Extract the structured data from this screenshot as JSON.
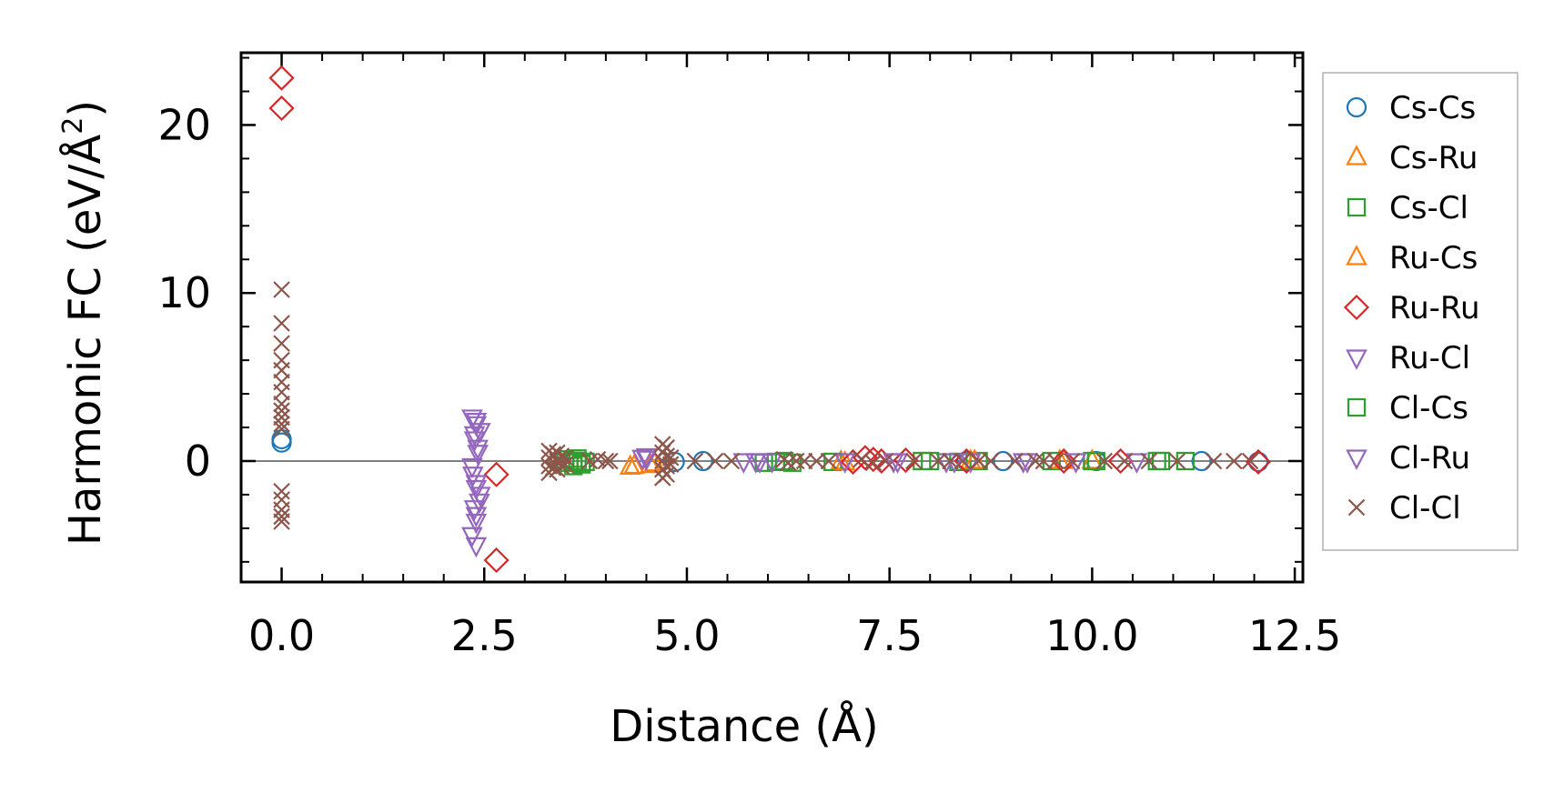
{
  "chart_data": {
    "type": "scatter",
    "title": "",
    "xlabel": "Distance (Å)",
    "ylabel_prefix": "Harmonic FC (eV/Å",
    "ylabel_sup": "2",
    "ylabel_suffix": ")",
    "xlim": [
      -0.5,
      12.6
    ],
    "ylim": [
      -7.2,
      24.3
    ],
    "xticks": [
      0.0,
      2.5,
      5.0,
      7.5,
      10.0,
      12.5
    ],
    "xtick_labels": [
      "0.0",
      "2.5",
      "5.0",
      "7.5",
      "10.0",
      "12.5"
    ],
    "yticks": [
      0,
      10,
      20
    ],
    "ytick_labels": [
      "0",
      "10",
      "20"
    ],
    "x_minor_step": 0.5,
    "y_minor_step": 2,
    "hline_y": 0,
    "legend_position": "right, outside plot",
    "grid": false,
    "series": [
      {
        "name": "Cs-Cs",
        "marker": "circle",
        "color": "#1f77b4",
        "points": [
          [
            0.0,
            1.3
          ],
          [
            0.0,
            1.1
          ],
          [
            4.85,
            -0.05
          ],
          [
            5.2,
            0.0
          ],
          [
            8.45,
            0.0
          ],
          [
            8.9,
            0.0
          ],
          [
            10.05,
            0.0
          ],
          [
            11.35,
            0.0
          ],
          [
            12.05,
            -0.05
          ]
        ]
      },
      {
        "name": "Cs-Ru",
        "marker": "triangle-up",
        "color": "#ff7f0e",
        "points": [
          [
            4.35,
            -0.3
          ],
          [
            4.55,
            -0.25
          ],
          [
            6.9,
            -0.05
          ],
          [
            8.5,
            0.0
          ],
          [
            9.6,
            0.0
          ],
          [
            10.0,
            0.0
          ]
        ]
      },
      {
        "name": "Cs-Cl",
        "marker": "square",
        "color": "#2ca02c",
        "points": [
          [
            3.55,
            -0.1
          ],
          [
            3.6,
            -0.3
          ],
          [
            3.65,
            0.15
          ],
          [
            3.7,
            -0.2
          ],
          [
            3.6,
            0.0
          ],
          [
            3.75,
            -0.05
          ],
          [
            5.95,
            -0.1
          ],
          [
            6.1,
            -0.05
          ],
          [
            6.3,
            -0.1
          ],
          [
            6.8,
            -0.05
          ],
          [
            7.9,
            0.0
          ],
          [
            8.35,
            -0.05
          ],
          [
            8.6,
            0.0
          ],
          [
            9.5,
            0.0
          ],
          [
            10.0,
            0.0
          ],
          [
            10.8,
            0.0
          ],
          [
            11.15,
            0.0
          ]
        ]
      },
      {
        "name": "Ru-Cs",
        "marker": "triangle-up",
        "color": "#ff7f0e",
        "points": [
          [
            4.3,
            -0.35
          ],
          [
            4.6,
            -0.15
          ],
          [
            6.95,
            -0.1
          ],
          [
            8.55,
            0.0
          ],
          [
            9.65,
            0.0
          ]
        ]
      },
      {
        "name": "Ru-Ru",
        "marker": "diamond",
        "color": "#d62728",
        "points": [
          [
            0.0,
            22.8
          ],
          [
            0.0,
            21.0
          ],
          [
            2.65,
            -0.8
          ],
          [
            2.65,
            -5.9
          ],
          [
            7.05,
            -0.05
          ],
          [
            7.2,
            0.2
          ],
          [
            7.3,
            0.1
          ],
          [
            7.4,
            0.0
          ],
          [
            7.7,
            0.05
          ],
          [
            8.45,
            0.0
          ],
          [
            9.65,
            0.0
          ],
          [
            10.35,
            0.0
          ],
          [
            12.05,
            -0.05
          ]
        ]
      },
      {
        "name": "Ru-Cl",
        "marker": "triangle-down",
        "color": "#9467bd",
        "points": [
          [
            2.35,
            2.6
          ],
          [
            2.4,
            2.2
          ],
          [
            2.45,
            1.8
          ],
          [
            2.38,
            1.3
          ],
          [
            2.42,
            0.8
          ],
          [
            2.35,
            -0.3
          ],
          [
            2.4,
            -1.3
          ],
          [
            2.45,
            -2.0
          ],
          [
            2.38,
            -2.8
          ],
          [
            2.4,
            -3.6
          ],
          [
            2.35,
            -4.4
          ],
          [
            2.4,
            -5.0
          ],
          [
            4.45,
            0.2
          ],
          [
            4.5,
            0.3
          ],
          [
            5.7,
            0.0
          ],
          [
            5.9,
            0.0
          ],
          [
            6.05,
            0.0
          ],
          [
            6.95,
            0.0
          ],
          [
            7.6,
            0.0
          ],
          [
            8.2,
            0.0
          ],
          [
            8.5,
            0.0
          ],
          [
            9.15,
            0.0
          ],
          [
            9.8,
            0.0
          ],
          [
            10.55,
            0.0
          ]
        ]
      },
      {
        "name": "Cl-Cs",
        "marker": "square",
        "color": "#2ca02c",
        "points": [
          [
            3.5,
            0.1
          ],
          [
            3.65,
            0.0
          ],
          [
            3.7,
            -0.1
          ],
          [
            6.2,
            0.0
          ],
          [
            8.0,
            0.0
          ],
          [
            10.05,
            0.0
          ],
          [
            10.85,
            0.0
          ]
        ]
      },
      {
        "name": "Cl-Ru",
        "marker": "triangle-down",
        "color": "#9467bd",
        "points": [
          [
            2.4,
            2.4
          ],
          [
            2.38,
            1.6
          ],
          [
            2.42,
            0.5
          ],
          [
            2.36,
            -0.8
          ],
          [
            2.4,
            -1.6
          ],
          [
            2.44,
            -2.4
          ],
          [
            2.4,
            -3.2
          ],
          [
            4.5,
            0.15
          ],
          [
            5.85,
            0.0
          ],
          [
            7.55,
            0.0
          ],
          [
            8.3,
            0.0
          ],
          [
            9.2,
            0.0
          ]
        ]
      },
      {
        "name": "Cl-Cl",
        "marker": "x",
        "color": "#8c564b",
        "points": [
          [
            0.0,
            10.2
          ],
          [
            0.0,
            8.2
          ],
          [
            0.0,
            7.0
          ],
          [
            0.0,
            6.0
          ],
          [
            0.0,
            5.4
          ],
          [
            0.0,
            4.7
          ],
          [
            0.0,
            4.1
          ],
          [
            0.0,
            3.4
          ],
          [
            0.0,
            3.0
          ],
          [
            0.0,
            2.6
          ],
          [
            0.0,
            2.2
          ],
          [
            0.0,
            1.9
          ],
          [
            0.0,
            -1.8
          ],
          [
            0.0,
            -2.3
          ],
          [
            0.0,
            -2.9
          ],
          [
            0.0,
            -3.3
          ],
          [
            0.0,
            -3.6
          ],
          [
            3.3,
            0.6
          ],
          [
            3.3,
            0.2
          ],
          [
            3.3,
            -0.3
          ],
          [
            3.3,
            -0.7
          ],
          [
            3.35,
            0.4
          ],
          [
            3.35,
            -0.4
          ],
          [
            3.4,
            0.5
          ],
          [
            3.4,
            0.0
          ],
          [
            3.4,
            -0.5
          ],
          [
            3.45,
            0.3
          ],
          [
            3.45,
            -0.3
          ],
          [
            3.5,
            0.2
          ],
          [
            3.5,
            -0.2
          ],
          [
            3.8,
            0.0
          ],
          [
            3.9,
            0.1
          ],
          [
            4.0,
            0.0
          ],
          [
            4.05,
            0.0
          ],
          [
            4.7,
            1.0
          ],
          [
            4.7,
            0.5
          ],
          [
            4.7,
            0.0
          ],
          [
            4.7,
            -0.5
          ],
          [
            4.7,
            -1.0
          ],
          [
            4.75,
            0.8
          ],
          [
            4.75,
            0.3
          ],
          [
            4.75,
            -0.3
          ],
          [
            4.75,
            -0.8
          ],
          [
            4.8,
            0.2
          ],
          [
            4.8,
            -0.2
          ],
          [
            5.1,
            0.0
          ],
          [
            5.35,
            0.0
          ],
          [
            5.55,
            0.0
          ],
          [
            6.2,
            0.1
          ],
          [
            6.25,
            -0.1
          ],
          [
            6.35,
            0.0
          ],
          [
            6.45,
            0.0
          ],
          [
            6.6,
            0.0
          ],
          [
            6.75,
            0.0
          ],
          [
            7.15,
            0.1
          ],
          [
            7.3,
            -0.1
          ],
          [
            7.45,
            0.0
          ],
          [
            7.8,
            0.0
          ],
          [
            8.1,
            0.0
          ],
          [
            8.25,
            0.0
          ],
          [
            8.4,
            0.0
          ],
          [
            8.6,
            0.0
          ],
          [
            8.75,
            0.0
          ],
          [
            9.05,
            0.0
          ],
          [
            9.3,
            0.0
          ],
          [
            9.4,
            0.0
          ],
          [
            9.55,
            0.0
          ],
          [
            9.75,
            0.0
          ],
          [
            10.15,
            0.0
          ],
          [
            10.4,
            0.0
          ],
          [
            10.7,
            0.0
          ],
          [
            11.05,
            0.0
          ],
          [
            11.5,
            0.0
          ],
          [
            11.75,
            0.0
          ],
          [
            11.95,
            0.0
          ]
        ]
      }
    ]
  }
}
